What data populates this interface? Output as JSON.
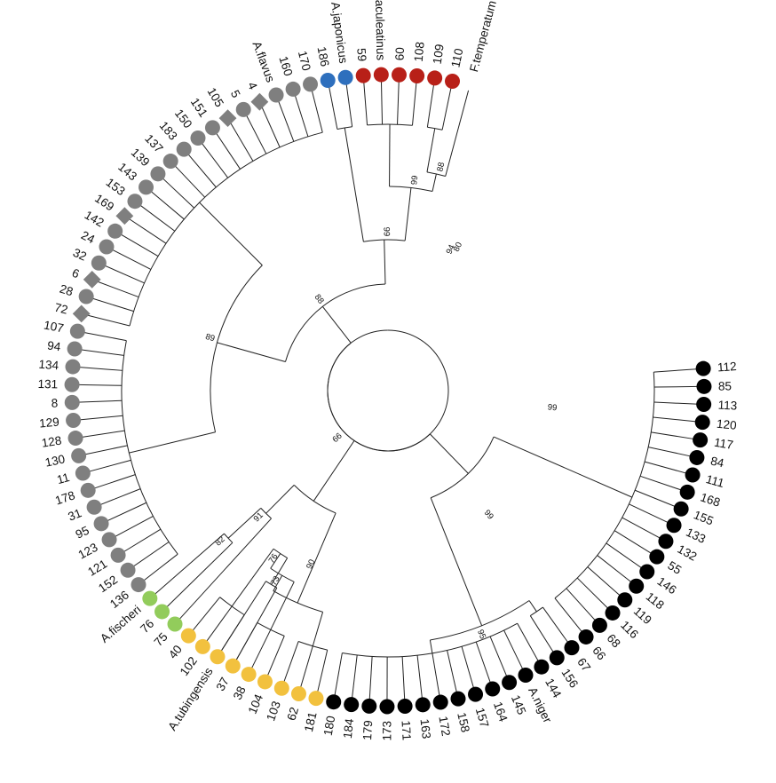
{
  "tree": {
    "colors": {
      "niger": "#000000",
      "tubingensis": "#f2c13e",
      "fischeri": "#92cc5b",
      "flavus": "#7f7f7f",
      "japonicus": "#2e6fbd",
      "aculeatinus": "#b82018",
      "branch": "#222222"
    },
    "tips": [
      {
        "label": "112",
        "group": "niger",
        "shape": "circle"
      },
      {
        "label": "85",
        "group": "niger",
        "shape": "circle"
      },
      {
        "label": "113",
        "group": "niger",
        "shape": "circle"
      },
      {
        "label": "120",
        "group": "niger",
        "shape": "circle"
      },
      {
        "label": "117",
        "group": "niger",
        "shape": "circle"
      },
      {
        "label": "84",
        "group": "niger",
        "shape": "circle"
      },
      {
        "label": "111",
        "group": "niger",
        "shape": "circle"
      },
      {
        "label": "168",
        "group": "niger",
        "shape": "circle"
      },
      {
        "label": "155",
        "group": "niger",
        "shape": "circle"
      },
      {
        "label": "133",
        "group": "niger",
        "shape": "circle"
      },
      {
        "label": "132",
        "group": "niger",
        "shape": "circle"
      },
      {
        "label": "55",
        "group": "niger",
        "shape": "circle"
      },
      {
        "label": "146",
        "group": "niger",
        "shape": "circle"
      },
      {
        "label": "118",
        "group": "niger",
        "shape": "circle"
      },
      {
        "label": "119",
        "group": "niger",
        "shape": "circle"
      },
      {
        "label": "116",
        "group": "niger",
        "shape": "circle"
      },
      {
        "label": "68",
        "group": "niger",
        "shape": "circle"
      },
      {
        "label": "66",
        "group": "niger",
        "shape": "circle"
      },
      {
        "label": "67",
        "group": "niger",
        "shape": "circle"
      },
      {
        "label": "156",
        "group": "niger",
        "shape": "circle"
      },
      {
        "label": "144",
        "group": "niger",
        "shape": "circle"
      },
      {
        "label": "A.niger",
        "group": "niger",
        "shape": "circle"
      },
      {
        "label": "145",
        "group": "niger",
        "shape": "circle"
      },
      {
        "label": "164",
        "group": "niger",
        "shape": "circle"
      },
      {
        "label": "157",
        "group": "niger",
        "shape": "circle"
      },
      {
        "label": "158",
        "group": "niger",
        "shape": "circle"
      },
      {
        "label": "172",
        "group": "niger",
        "shape": "circle"
      },
      {
        "label": "163",
        "group": "niger",
        "shape": "circle"
      },
      {
        "label": "171",
        "group": "niger",
        "shape": "circle"
      },
      {
        "label": "173",
        "group": "niger",
        "shape": "circle"
      },
      {
        "label": "179",
        "group": "niger",
        "shape": "circle"
      },
      {
        "label": "184",
        "group": "niger",
        "shape": "circle"
      },
      {
        "label": "180",
        "group": "niger",
        "shape": "circle"
      },
      {
        "label": "181",
        "group": "tubingensis",
        "shape": "circle"
      },
      {
        "label": "62",
        "group": "tubingensis",
        "shape": "circle"
      },
      {
        "label": "103",
        "group": "tubingensis",
        "shape": "circle"
      },
      {
        "label": "104",
        "group": "tubingensis",
        "shape": "circle"
      },
      {
        "label": "38",
        "group": "tubingensis",
        "shape": "circle"
      },
      {
        "label": "37",
        "group": "tubingensis",
        "shape": "circle"
      },
      {
        "label": "A.tubingensis",
        "group": "tubingensis",
        "shape": "circle"
      },
      {
        "label": "102",
        "group": "tubingensis",
        "shape": "circle"
      },
      {
        "label": "40",
        "group": "tubingensis",
        "shape": "circle"
      },
      {
        "label": "75",
        "group": "fischeri",
        "shape": "circle"
      },
      {
        "label": "76",
        "group": "fischeri",
        "shape": "circle"
      },
      {
        "label": "A.fischeri",
        "group": "fischeri",
        "shape": "circle"
      },
      {
        "label": "136",
        "group": "flavus",
        "shape": "circle"
      },
      {
        "label": "152",
        "group": "flavus",
        "shape": "circle"
      },
      {
        "label": "121",
        "group": "flavus",
        "shape": "circle"
      },
      {
        "label": "123",
        "group": "flavus",
        "shape": "circle"
      },
      {
        "label": "95",
        "group": "flavus",
        "shape": "circle"
      },
      {
        "label": "31",
        "group": "flavus",
        "shape": "circle"
      },
      {
        "label": "178",
        "group": "flavus",
        "shape": "circle"
      },
      {
        "label": "11",
        "group": "flavus",
        "shape": "circle"
      },
      {
        "label": "130",
        "group": "flavus",
        "shape": "circle"
      },
      {
        "label": "128",
        "group": "flavus",
        "shape": "circle"
      },
      {
        "label": "129",
        "group": "flavus",
        "shape": "circle"
      },
      {
        "label": "8",
        "group": "flavus",
        "shape": "circle"
      },
      {
        "label": "131",
        "group": "flavus",
        "shape": "circle"
      },
      {
        "label": "134",
        "group": "flavus",
        "shape": "circle"
      },
      {
        "label": "94",
        "group": "flavus",
        "shape": "circle"
      },
      {
        "label": "107",
        "group": "flavus",
        "shape": "circle"
      },
      {
        "label": "72",
        "group": "flavus",
        "shape": "diamond"
      },
      {
        "label": "28",
        "group": "flavus",
        "shape": "circle"
      },
      {
        "label": "6",
        "group": "flavus",
        "shape": "diamond"
      },
      {
        "label": "32",
        "group": "flavus",
        "shape": "circle"
      },
      {
        "label": "24",
        "group": "flavus",
        "shape": "circle"
      },
      {
        "label": "142",
        "group": "flavus",
        "shape": "circle"
      },
      {
        "label": "169",
        "group": "flavus",
        "shape": "diamond"
      },
      {
        "label": "153",
        "group": "flavus",
        "shape": "circle"
      },
      {
        "label": "143",
        "group": "flavus",
        "shape": "circle"
      },
      {
        "label": "139",
        "group": "flavus",
        "shape": "circle"
      },
      {
        "label": "137",
        "group": "flavus",
        "shape": "circle"
      },
      {
        "label": "183",
        "group": "flavus",
        "shape": "circle"
      },
      {
        "label": "150",
        "group": "flavus",
        "shape": "circle"
      },
      {
        "label": "151",
        "group": "flavus",
        "shape": "circle"
      },
      {
        "label": "105",
        "group": "flavus",
        "shape": "diamond"
      },
      {
        "label": "5",
        "group": "flavus",
        "shape": "circle"
      },
      {
        "label": "4",
        "group": "flavus",
        "shape": "diamond"
      },
      {
        "label": "A.flavus",
        "group": "flavus",
        "shape": "circle"
      },
      {
        "label": "160",
        "group": "flavus",
        "shape": "circle"
      },
      {
        "label": "170",
        "group": "flavus",
        "shape": "circle"
      },
      {
        "label": "186",
        "group": "japonicus",
        "shape": "circle"
      },
      {
        "label": "A.japonicus",
        "group": "japonicus",
        "shape": "circle"
      },
      {
        "label": "59",
        "group": "aculeatinus",
        "shape": "circle"
      },
      {
        "label": "A.aculeatinus",
        "group": "aculeatinus",
        "shape": "circle"
      },
      {
        "label": "60",
        "group": "aculeatinus",
        "shape": "circle"
      },
      {
        "label": "108",
        "group": "aculeatinus",
        "shape": "circle"
      },
      {
        "label": "109",
        "group": "aculeatinus",
        "shape": "circle"
      },
      {
        "label": "110",
        "group": "aculeatinus",
        "shape": "circle"
      },
      {
        "label": "F.temperatum",
        "group": "outgroup",
        "shape": "none"
      }
    ],
    "bootstrap": [
      "95",
      "88",
      "99",
      "99",
      "94",
      "80",
      "99",
      "99",
      "76",
      "73",
      "90",
      "91",
      "99",
      "82",
      "88",
      "89"
    ]
  }
}
